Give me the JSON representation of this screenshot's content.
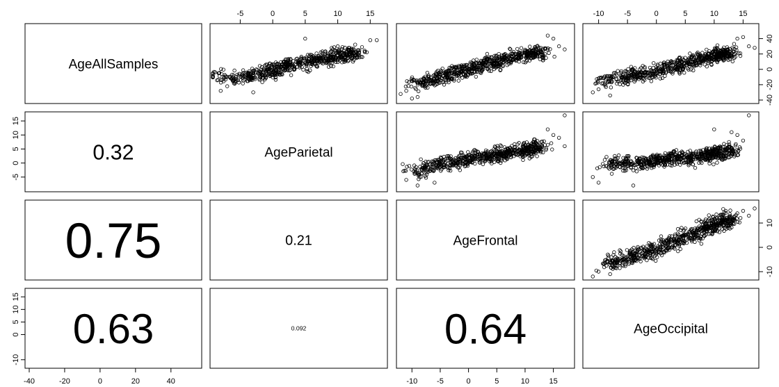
{
  "chart_data": {
    "type": "scatter",
    "layout": "pairs-matrix",
    "variables": [
      "AgeAllSamples",
      "AgeParietal",
      "AgeFrontal",
      "AgeOccipital"
    ],
    "ranges": {
      "AgeAllSamples": [
        -40,
        55
      ],
      "AgeParietal": [
        -9,
        17
      ],
      "AgeFrontal": [
        -12,
        18
      ],
      "AgeOccipital": [
        -12,
        17
      ]
    },
    "top_axis_ticks": {
      "1": [
        "-5",
        "0",
        "5",
        "10",
        "15"
      ],
      "3": [
        "-10",
        "-5",
        "0",
        "5",
        "10",
        "15"
      ]
    },
    "right_axis_ticks": {
      "0": [
        "-40",
        "-20",
        "0",
        "20",
        "40"
      ],
      "2": [
        "-10",
        "0",
        "10"
      ]
    },
    "left_axis_ticks": {
      "1": [
        "-5",
        "0",
        "5",
        "10",
        "15"
      ],
      "3": [
        "-10",
        "0",
        "5",
        "10",
        "15"
      ]
    },
    "bottom_axis_ticks": {
      "0": [
        "-40",
        "-20",
        "0",
        "20",
        "40"
      ],
      "2": [
        "-10",
        "-5",
        "0",
        "5",
        "10",
        "15"
      ]
    },
    "correlations": [
      {
        "row": 1,
        "col": 0,
        "value": "0.32"
      },
      {
        "row": 2,
        "col": 0,
        "value": "0.75"
      },
      {
        "row": 2,
        "col": 1,
        "value": "0.21"
      },
      {
        "row": 3,
        "col": 0,
        "value": "0.63"
      },
      {
        "row": 3,
        "col": 1,
        "value": "0.092"
      },
      {
        "row": 3,
        "col": 2,
        "value": "0.64"
      }
    ],
    "scatter_panels": [
      {
        "row": 0,
        "col": 1,
        "x": "AgeParietal",
        "y": "AgeAllSamples",
        "r": 0.32,
        "cloud": [
          [
            -9,
            -10
          ],
          [
            -5,
            -12
          ],
          [
            -2,
            -6
          ],
          [
            0,
            -2
          ],
          [
            2,
            4
          ],
          [
            5,
            10
          ],
          [
            8,
            14
          ],
          [
            11,
            18
          ],
          [
            13,
            22
          ]
        ],
        "outliers": [
          [
            -7,
            -22
          ],
          [
            -3,
            -30
          ],
          [
            5,
            40
          ],
          [
            10,
            30
          ],
          [
            15,
            38
          ],
          [
            16,
            38
          ],
          [
            -8,
            -28
          ],
          [
            12,
            25
          ]
        ]
      },
      {
        "row": 0,
        "col": 2,
        "x": "AgeFrontal",
        "y": "AgeAllSamples",
        "r": 0.75,
        "cloud": [
          [
            -10,
            -20
          ],
          [
            -7,
            -14
          ],
          [
            -4,
            -8
          ],
          [
            -1,
            -2
          ],
          [
            2,
            4
          ],
          [
            5,
            10
          ],
          [
            8,
            16
          ],
          [
            11,
            20
          ],
          [
            13,
            24
          ]
        ],
        "outliers": [
          [
            -12,
            -32
          ],
          [
            -11,
            -28
          ],
          [
            -9,
            -36
          ],
          [
            15,
            40
          ],
          [
            16,
            30
          ],
          [
            17,
            26
          ],
          [
            14,
            44
          ],
          [
            -10,
            -38
          ]
        ]
      },
      {
        "row": 0,
        "col": 3,
        "x": "AgeOccipital",
        "y": "AgeAllSamples",
        "r": 0.63,
        "cloud": [
          [
            -9,
            -14
          ],
          [
            -6,
            -10
          ],
          [
            -3,
            -6
          ],
          [
            0,
            -2
          ],
          [
            3,
            4
          ],
          [
            6,
            10
          ],
          [
            9,
            16
          ],
          [
            11,
            20
          ],
          [
            13,
            22
          ]
        ],
        "outliers": [
          [
            -11,
            -30
          ],
          [
            -10,
            -26
          ],
          [
            -8,
            -34
          ],
          [
            14,
            40
          ],
          [
            15,
            42
          ],
          [
            16,
            30
          ],
          [
            17,
            28
          ],
          [
            -9,
            -20
          ]
        ]
      },
      {
        "row": 1,
        "col": 2,
        "x": "AgeFrontal",
        "y": "AgeParietal",
        "r": 0.21,
        "cloud": [
          [
            -10,
            -3
          ],
          [
            -7,
            -1
          ],
          [
            -4,
            0
          ],
          [
            -1,
            1
          ],
          [
            2,
            2
          ],
          [
            5,
            3
          ],
          [
            8,
            4
          ],
          [
            11,
            5
          ],
          [
            13,
            6
          ]
        ],
        "outliers": [
          [
            -11,
            -6
          ],
          [
            -9,
            -8
          ],
          [
            -6,
            -7
          ],
          [
            17,
            17
          ],
          [
            16,
            9
          ],
          [
            14,
            12
          ],
          [
            15,
            10
          ],
          [
            17,
            6
          ]
        ]
      },
      {
        "row": 1,
        "col": 3,
        "x": "AgeOccipital",
        "y": "AgeParietal",
        "r": 0.092,
        "cloud": [
          [
            -9,
            -1
          ],
          [
            -6,
            0
          ],
          [
            -3,
            0
          ],
          [
            0,
            1
          ],
          [
            3,
            2
          ],
          [
            6,
            2
          ],
          [
            9,
            3
          ],
          [
            11,
            4
          ],
          [
            13,
            5
          ]
        ],
        "outliers": [
          [
            -11,
            -5
          ],
          [
            -10,
            -7
          ],
          [
            -4,
            -8
          ],
          [
            16,
            17
          ],
          [
            14,
            10
          ],
          [
            13,
            11
          ],
          [
            15,
            8
          ],
          [
            10,
            12
          ]
        ]
      },
      {
        "row": 2,
        "col": 3,
        "x": "AgeOccipital",
        "y": "AgeFrontal",
        "r": 0.64,
        "cloud": [
          [
            -9,
            -7
          ],
          [
            -6,
            -5
          ],
          [
            -3,
            -3
          ],
          [
            0,
            -1
          ],
          [
            3,
            2
          ],
          [
            6,
            5
          ],
          [
            9,
            8
          ],
          [
            11,
            10
          ],
          [
            13,
            12
          ]
        ],
        "outliers": [
          [
            -11,
            -12
          ],
          [
            -10,
            -10
          ],
          [
            -8,
            -11
          ],
          [
            17,
            16
          ],
          [
            15,
            15
          ],
          [
            14,
            14
          ],
          [
            12,
            15
          ],
          [
            16,
            13
          ]
        ]
      }
    ]
  }
}
